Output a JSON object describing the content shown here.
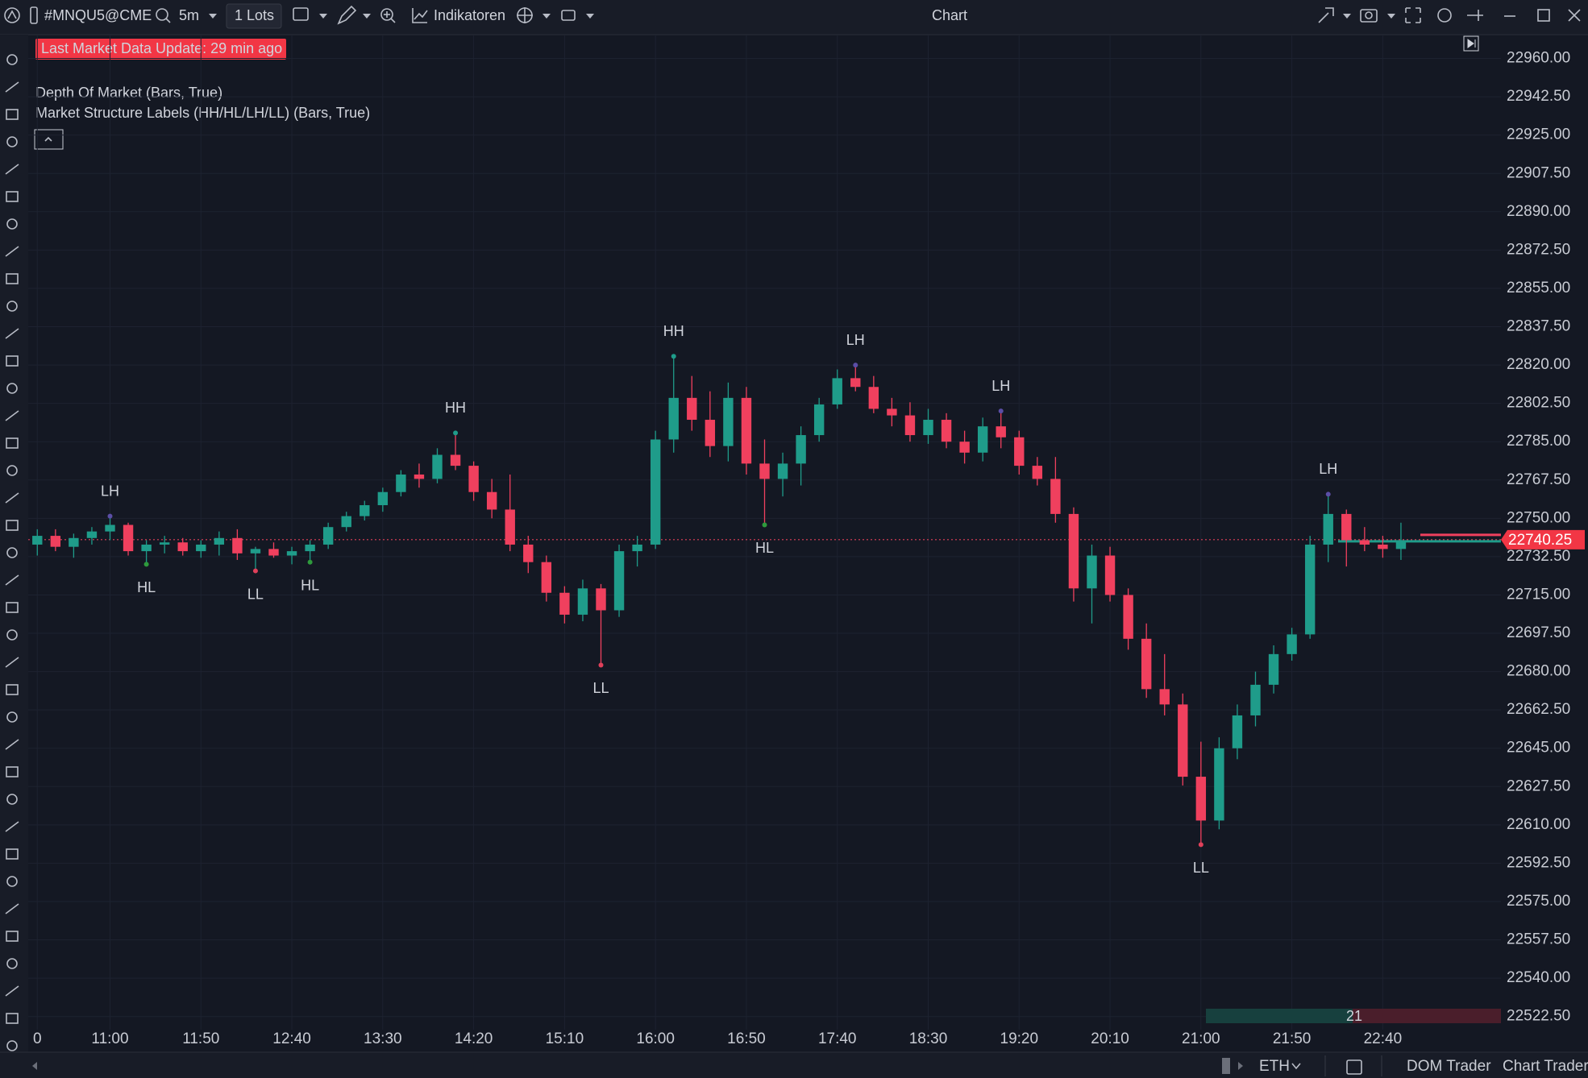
{
  "toolbar": {
    "symbol": "#MNQU5@CME",
    "interval": "5m",
    "lots": "1 Lots",
    "indicators": "Indikatoren",
    "title": "Chart"
  },
  "chart_data": {
    "type": "candlestick",
    "status": "Last Market Data Update: 29 min ago",
    "indicators": [
      "Depth Of Market (Bars, True)",
      "Market Structure Labels (HH/HL/LH/LL) (Bars, True)"
    ],
    "up_color": "#1f9c8a",
    "down_color": "#f0405e",
    "grid": true,
    "xlim": [
      -1,
      161
    ],
    "ylim": [
      22516.5,
      22970.5
    ],
    "xticks": [
      0,
      {
        "value": 8,
        "label": "11:00"
      },
      {
        "value": 18,
        "label": "11:50"
      },
      {
        "value": 28,
        "label": "12:40"
      },
      {
        "value": 38,
        "label": "13:30"
      },
      {
        "value": 48,
        "label": "14:20"
      },
      {
        "value": 58,
        "label": "15:10"
      },
      {
        "value": 68,
        "label": "16:00"
      },
      {
        "value": 78,
        "label": "16:50"
      },
      {
        "value": 88,
        "label": "17:40"
      },
      {
        "value": 98,
        "label": "18:30"
      },
      {
        "value": 108,
        "label": "19:20"
      },
      {
        "value": 118,
        "label": "20:10"
      },
      {
        "value": 128,
        "label": "21:00"
      },
      {
        "value": 138,
        "label": "21:50"
      },
      {
        "value": 148,
        "label": "22:40"
      }
    ],
    "yticks": [
      {
        "value": 22960,
        "label": "22960.00"
      },
      {
        "value": 22942.5,
        "label": "22942.50"
      },
      {
        "value": 22925,
        "label": "22925.00"
      },
      {
        "value": 22907.5,
        "label": "22907.50"
      },
      {
        "value": 22890,
        "label": "22890.00"
      },
      {
        "value": 22872.5,
        "label": "22872.50"
      },
      {
        "value": 22855,
        "label": "22855.00"
      },
      {
        "value": 22837.5,
        "label": "22837.50"
      },
      {
        "value": 22820,
        "label": "22820.00"
      },
      {
        "value": 22802.5,
        "label": "22802.50"
      },
      {
        "value": 22785,
        "label": "22785.00"
      },
      {
        "value": 22767.5,
        "label": "22767.50"
      },
      {
        "value": 22750,
        "label": "22750.00"
      },
      {
        "value": 22732.5,
        "label": "22732.50"
      },
      {
        "value": 22715,
        "label": "22715.00"
      },
      {
        "value": 22697.5,
        "label": "22697.50"
      },
      {
        "value": 22680,
        "label": "22680.00"
      },
      {
        "value": 22662.5,
        "label": "22662.50"
      },
      {
        "value": 22645,
        "label": "22645.00"
      },
      {
        "value": 22627.5,
        "label": "22627.50"
      },
      {
        "value": 22610,
        "label": "22610.00"
      },
      {
        "value": 22592.5,
        "label": "22592.50"
      },
      {
        "value": 22575,
        "label": "22575.00"
      },
      {
        "value": 22557.5,
        "label": "22557.50"
      },
      {
        "value": 22540,
        "label": "22540.00"
      },
      {
        "value": 22522.5,
        "label": "22522.50"
      }
    ],
    "x": [
      0,
      2,
      4,
      6,
      8,
      10,
      12,
      14,
      16,
      18,
      20,
      22,
      24,
      26,
      28,
      30,
      32,
      34,
      36,
      38,
      40,
      42,
      44,
      46,
      48,
      50,
      52,
      54,
      56,
      58,
      60,
      62,
      64,
      66,
      68,
      70,
      72,
      74,
      76,
      78,
      80,
      82,
      84,
      86,
      88,
      90,
      92,
      94,
      96,
      98,
      100,
      102,
      104,
      106,
      108,
      110,
      112,
      114,
      116,
      118,
      120,
      122,
      124,
      126,
      128,
      130,
      132,
      134,
      136,
      138,
      140,
      142,
      144,
      146,
      148,
      150
    ],
    "ohlc": [
      [
        22738,
        22745,
        22733,
        22742
      ],
      [
        22742,
        22745,
        22735,
        22737
      ],
      [
        22737,
        22743,
        22732,
        22741
      ],
      [
        22741,
        22746,
        22738,
        22744
      ],
      [
        22744,
        22751,
        22740,
        22747
      ],
      [
        22747,
        22748,
        22733,
        22735
      ],
      [
        22735,
        22740,
        22729,
        22738
      ],
      [
        22738,
        22742,
        22734,
        22739
      ],
      [
        22739,
        22741,
        22733,
        22735
      ],
      [
        22735,
        22740,
        22732,
        22738
      ],
      [
        22738,
        22744,
        22733,
        22741
      ],
      [
        22741,
        22745,
        22731,
        22734
      ],
      [
        22734,
        22737,
        22726,
        22736
      ],
      [
        22736,
        22739,
        22732,
        22733
      ],
      [
        22733,
        22737,
        22729,
        22735
      ],
      [
        22735,
        22740,
        22730,
        22738
      ],
      [
        22738,
        22748,
        22736,
        22746
      ],
      [
        22746,
        22753,
        22744,
        22751
      ],
      [
        22751,
        22758,
        22749,
        22756
      ],
      [
        22756,
        22764,
        22753,
        22762
      ],
      [
        22762,
        22772,
        22760,
        22770
      ],
      [
        22770,
        22775,
        22764,
        22768
      ],
      [
        22768,
        22782,
        22766,
        22779
      ],
      [
        22779,
        22789,
        22772,
        22774
      ],
      [
        22774,
        22776,
        22758,
        22762
      ],
      [
        22762,
        22768,
        22750,
        22754
      ],
      [
        22754,
        22770,
        22735,
        22738
      ],
      [
        22738,
        22742,
        22725,
        22730
      ],
      [
        22730,
        22733,
        22712,
        22716
      ],
      [
        22716,
        22719,
        22702,
        22706
      ],
      [
        22706,
        22722,
        22703,
        22718
      ],
      [
        22718,
        22720,
        22683,
        22708
      ],
      [
        22708,
        22738,
        22705,
        22735
      ],
      [
        22735,
        22742,
        22728,
        22738
      ],
      [
        22738,
        22790,
        22736,
        22786
      ],
      [
        22786,
        22824,
        22780,
        22805
      ],
      [
        22805,
        22815,
        22790,
        22795
      ],
      [
        22795,
        22808,
        22778,
        22783
      ],
      [
        22783,
        22812,
        22776,
        22805
      ],
      [
        22805,
        22810,
        22770,
        22775
      ],
      [
        22775,
        22786,
        22747,
        22768
      ],
      [
        22768,
        22780,
        22760,
        22775
      ],
      [
        22775,
        22792,
        22765,
        22788
      ],
      [
        22788,
        22805,
        22785,
        22802
      ],
      [
        22802,
        22818,
        22800,
        22814
      ],
      [
        22814,
        22820,
        22808,
        22810
      ],
      [
        22810,
        22815,
        22798,
        22800
      ],
      [
        22800,
        22805,
        22792,
        22797
      ],
      [
        22797,
        22803,
        22785,
        22788
      ],
      [
        22788,
        22800,
        22784,
        22795
      ],
      [
        22795,
        22798,
        22782,
        22785
      ],
      [
        22785,
        22790,
        22775,
        22780
      ],
      [
        22780,
        22796,
        22776,
        22792
      ],
      [
        22792,
        22799,
        22782,
        22787
      ],
      [
        22787,
        22790,
        22770,
        22774
      ],
      [
        22774,
        22778,
        22765,
        22768
      ],
      [
        22768,
        22778,
        22748,
        22752
      ],
      [
        22752,
        22755,
        22712,
        22718
      ],
      [
        22718,
        22738,
        22702,
        22733
      ],
      [
        22733,
        22737,
        22712,
        22715
      ],
      [
        22715,
        22718,
        22690,
        22695
      ],
      [
        22695,
        22702,
        22668,
        22672
      ],
      [
        22672,
        22688,
        22660,
        22665
      ],
      [
        22665,
        22670,
        22628,
        22632
      ],
      [
        22632,
        22648,
        22601,
        22612
      ],
      [
        22612,
        22650,
        22608,
        22645
      ],
      [
        22645,
        22665,
        22640,
        22660
      ],
      [
        22660,
        22680,
        22655,
        22674
      ],
      [
        22674,
        22692,
        22670,
        22688
      ],
      [
        22688,
        22700,
        22685,
        22697
      ],
      [
        22697,
        22742,
        22695,
        22738
      ],
      [
        22738,
        22761,
        22730,
        22752
      ],
      [
        22752,
        22754,
        22728,
        22740
      ],
      [
        22740,
        22746,
        22735,
        22738
      ],
      [
        22738,
        22742,
        22732,
        22736
      ],
      [
        22736,
        22748,
        22731,
        22740
      ]
    ],
    "annotations": [
      {
        "text": "LH",
        "x": 8,
        "price": 22751,
        "side": "above",
        "color": "#5b4ea6"
      },
      {
        "text": "HL",
        "x": 12,
        "price": 22729,
        "side": "below",
        "color": "#2e9a3c"
      },
      {
        "text": "LL",
        "x": 24,
        "price": 22726,
        "side": "below",
        "color": "#e0405a"
      },
      {
        "text": "HL",
        "x": 30,
        "price": 22730,
        "side": "below",
        "color": "#2e9a3c"
      },
      {
        "text": "HH",
        "x": 46,
        "price": 22789,
        "side": "above",
        "color": "#1f9c8a"
      },
      {
        "text": "LL",
        "x": 62,
        "price": 22683,
        "side": "below",
        "color": "#e0405a"
      },
      {
        "text": "HH",
        "x": 70,
        "price": 22824,
        "side": "above",
        "color": "#1f9c8a"
      },
      {
        "text": "HL",
        "x": 80,
        "price": 22747,
        "side": "below",
        "color": "#2e9a3c"
      },
      {
        "text": "LH",
        "x": 90,
        "price": 22820,
        "side": "above",
        "color": "#5b4ea6"
      },
      {
        "text": "LH",
        "x": 106,
        "price": 22799,
        "side": "above",
        "color": "#5b4ea6"
      },
      {
        "text": "LL",
        "x": 128,
        "price": 22601,
        "side": "below",
        "color": "#e0405a"
      },
      {
        "text": "LH",
        "x": 142,
        "price": 22761,
        "side": "above",
        "color": "#5b4ea6"
      }
    ],
    "last_price": 22740.25,
    "volume": 21
  },
  "footer": {
    "session": "ETH",
    "dom_trader": "DOM Trader",
    "chart_trader": "Chart Trader"
  }
}
